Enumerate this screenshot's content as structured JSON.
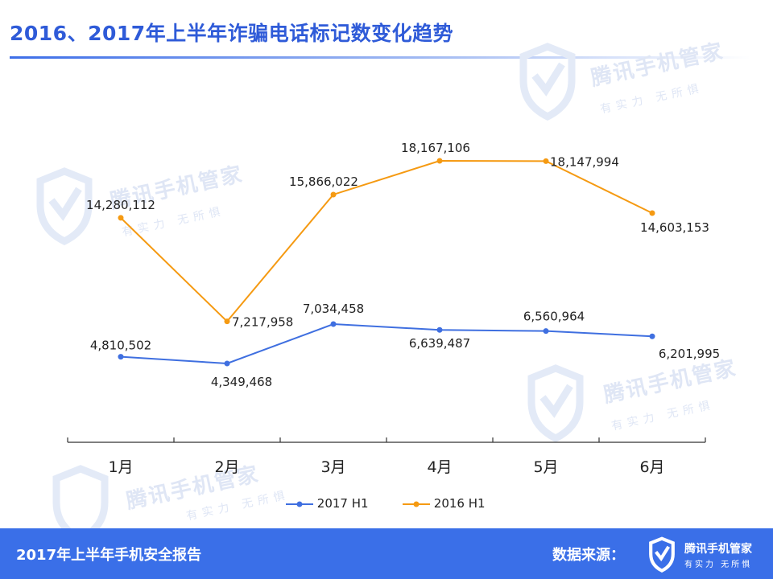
{
  "header": {
    "title": "2016、2017年上半年诈骗电话标记数变化趋势"
  },
  "footer": {
    "report": "2017年上半年手机安全报告",
    "source_label": "数据来源：",
    "brand": "腾讯手机管家",
    "slogan": "有实力  无所惧"
  },
  "watermark": {
    "brand": "腾讯手机管家",
    "slogan": "有实力  无所惧"
  },
  "colors": {
    "accent": "#3a6fe8",
    "series_2017": "#3f6fe0",
    "series_2016": "#f59a12"
  },
  "chart_data": {
    "type": "line",
    "categories": [
      "1月",
      "2月",
      "3月",
      "4月",
      "5月",
      "6月"
    ],
    "series": [
      {
        "name": "2017 H1",
        "values": [
          4810502,
          4349468,
          7034458,
          6639487,
          6560964,
          6201995
        ],
        "labels": [
          "4,810,502",
          "4,349,468",
          "7,034,458",
          "6,639,487",
          "6,560,964",
          "6,201,995"
        ]
      },
      {
        "name": "2016 H1",
        "values": [
          14280112,
          7217958,
          15866022,
          18167106,
          18147994,
          14603153
        ],
        "labels": [
          "14,280,112",
          "7,217,958",
          "15,866,022",
          "18,167,106",
          "18,147,994",
          "14,603,153"
        ]
      }
    ],
    "title": "2016、2017年上半年诈骗电话标记数变化趋势",
    "xlabel": "",
    "ylabel": "",
    "grid": false,
    "legend": "bottom"
  }
}
